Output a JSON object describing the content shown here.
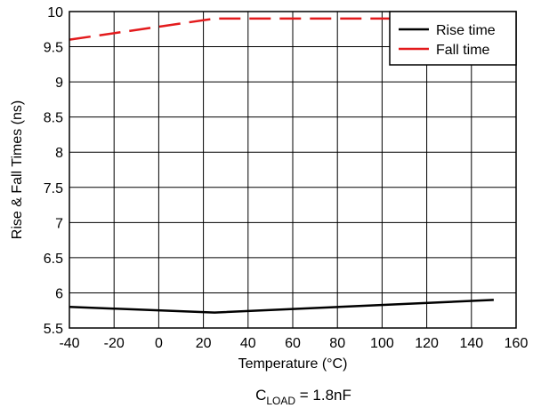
{
  "chart_data": {
    "type": "line",
    "title": "",
    "xlabel": "Temperature (°C)",
    "ylabel": "Rise & Fall Times (ns)",
    "xlim": [
      -40,
      160
    ],
    "ylim": [
      5.5,
      10
    ],
    "x_ticks": [
      -40,
      -20,
      0,
      20,
      40,
      60,
      80,
      100,
      120,
      140,
      160
    ],
    "y_ticks": [
      5.5,
      6,
      6.5,
      7,
      7.5,
      8,
      8.5,
      9,
      9.5,
      10
    ],
    "grid": true,
    "legend": "top-right",
    "series": [
      {
        "name": "Rise time",
        "color": "#000000",
        "style": "solid",
        "x": [
          -40,
          25,
          150
        ],
        "y": [
          5.8,
          5.72,
          5.9
        ]
      },
      {
        "name": "Fall time",
        "color": "#e31a1c",
        "style": "dashed",
        "x": [
          -40,
          25,
          150
        ],
        "y": [
          9.6,
          9.9,
          9.9
        ]
      }
    ]
  },
  "condition": {
    "prefix": "C",
    "subscript": "LOAD",
    "suffix": " = 1.8nF"
  }
}
